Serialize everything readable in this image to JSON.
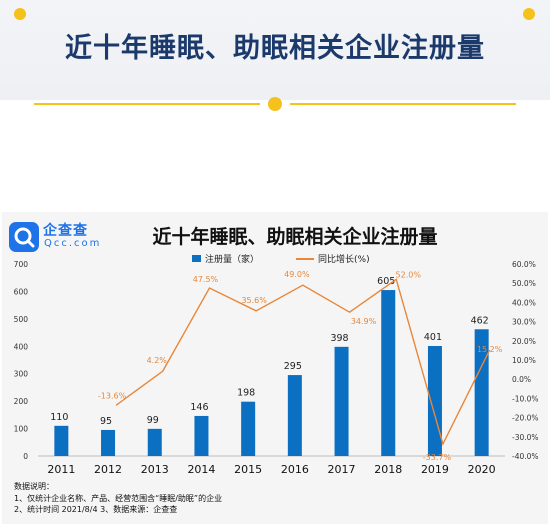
{
  "page": {
    "title": "近十年睡眠、助眠相关企业注册量"
  },
  "logo": {
    "name": "企查查",
    "sub": "Qcc.com"
  },
  "colors": {
    "bar": "#0b6fc2",
    "line": "#e8873a",
    "title": "#1b3a6b",
    "accent": "#f4c21a"
  },
  "chart_data": {
    "type": "bar",
    "title": "近十年睡眠、助眠相关企业注册量",
    "categories": [
      "2011",
      "2012",
      "2013",
      "2014",
      "2015",
      "2016",
      "2017",
      "2018",
      "2019",
      "2020"
    ],
    "series": [
      {
        "name": "注册量（家）",
        "type": "bar",
        "axis": "left",
        "values": [
          110,
          95,
          99,
          146,
          198,
          295,
          398,
          605,
          401,
          462
        ],
        "labels": [
          "110",
          "95",
          "99",
          "146",
          "198",
          "295",
          "398",
          "605",
          "401",
          "462"
        ]
      },
      {
        "name": "同比增长(%)",
        "type": "line",
        "axis": "right",
        "values": [
          null,
          -13.6,
          4.2,
          47.5,
          35.6,
          49.0,
          34.9,
          52.0,
          -33.7,
          15.2
        ],
        "labels": [
          "",
          "-13.6%",
          "4.2%",
          "47.5%",
          "35.6%",
          "49.0%",
          "34.9%",
          "52.0%",
          "-33.7%",
          "15.2%"
        ]
      }
    ],
    "ylim_left": [
      0,
      700
    ],
    "yticks_left": [
      "0",
      "100",
      "200",
      "300",
      "400",
      "500",
      "600",
      "700"
    ],
    "ylim_right": [
      -40,
      60
    ],
    "yticks_right": [
      "-40.0%",
      "-30.0%",
      "-20.0%",
      "-10.0%",
      "0.0%",
      "10.0%",
      "20.0%",
      "30.0%",
      "40.0%",
      "50.0%",
      "60.0%"
    ],
    "legend_position": "top-center",
    "grid": false
  },
  "notes": {
    "heading": "数据说明：",
    "line1": "1、仅统计企业名称、产品、经营范围含“睡眠/助眠”的企业",
    "line2": "2、统计时间 2021/8/4   3、数据来源：企查查"
  }
}
